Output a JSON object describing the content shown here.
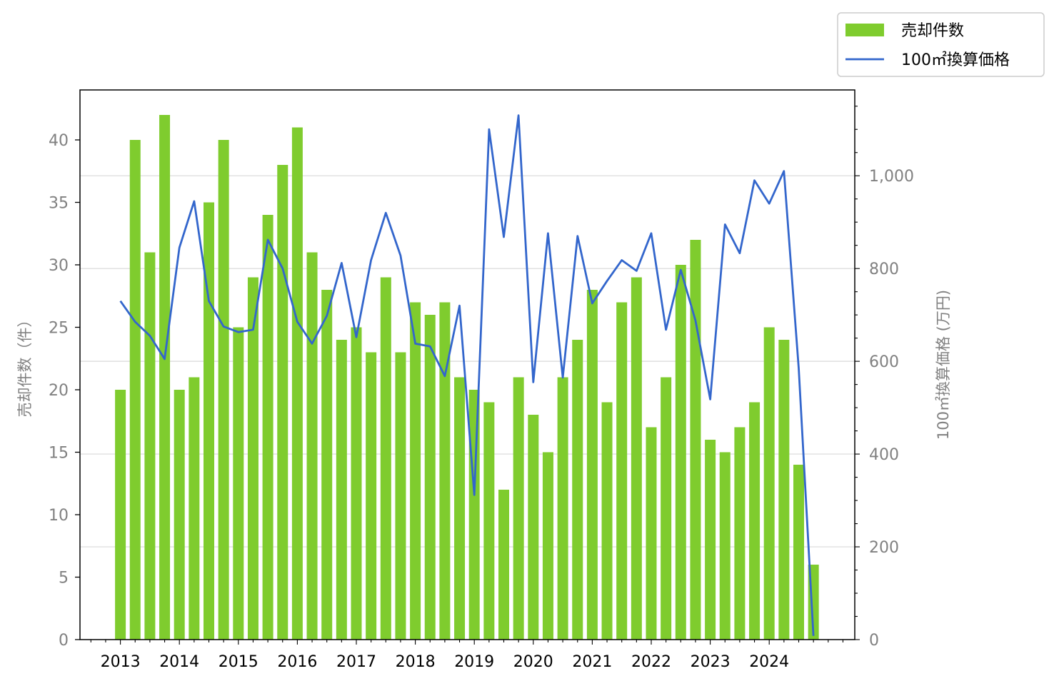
{
  "chart_data": {
    "type": "bar+line",
    "x_tick_labels": [
      "2013",
      "2014",
      "2015",
      "2016",
      "2017",
      "2018",
      "2019",
      "2020",
      "2021",
      "2022",
      "2023",
      "2024"
    ],
    "periods_per_year": 4,
    "series": [
      {
        "name": "売却件数",
        "type": "bar",
        "axis": "left",
        "color": "#7fcc2e",
        "values": [
          20,
          40,
          31,
          42,
          20,
          21,
          35,
          40,
          25,
          29,
          34,
          38,
          41,
          31,
          28,
          24,
          25,
          23,
          29,
          23,
          27,
          26,
          27,
          21,
          20,
          19,
          12,
          21,
          18,
          15,
          21,
          24,
          28,
          19,
          27,
          29,
          17,
          21,
          30,
          32,
          16,
          15,
          17,
          19,
          25,
          24,
          14,
          6
        ]
      },
      {
        "name": "100㎡換算価格",
        "type": "line",
        "axis": "right",
        "color": "#3366cc",
        "values": [
          730,
          685,
          655,
          605,
          845,
          945,
          730,
          675,
          663,
          668,
          862,
          800,
          685,
          638,
          698,
          812,
          652,
          818,
          920,
          828,
          638,
          632,
          568,
          720,
          312,
          1100,
          868,
          1130,
          555,
          876,
          565,
          870,
          725,
          773,
          818,
          795,
          876,
          668,
          797,
          688,
          518,
          895,
          833,
          990,
          940,
          1010,
          585,
          8
        ]
      }
    ],
    "left_axis": {
      "label": "売却件数（件）",
      "ylim": [
        0,
        44
      ],
      "ticks": [
        "0",
        "5",
        "10",
        "15",
        "20",
        "25",
        "30",
        "35",
        "40"
      ]
    },
    "right_axis": {
      "label": "100㎡換算価格 (万円)",
      "ylim": [
        0,
        1185
      ],
      "ticks": [
        "0",
        "200",
        "400",
        "600",
        "800",
        "1,000"
      ]
    },
    "grid": "horizontal, right axis",
    "legend": {
      "placement": "top-right, outside plot"
    }
  }
}
